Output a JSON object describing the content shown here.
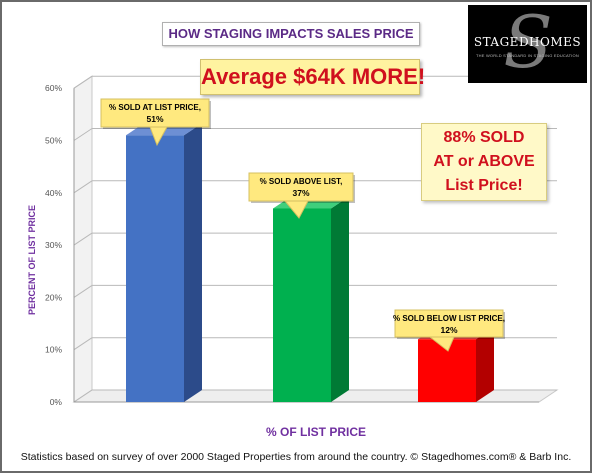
{
  "chart_data": {
    "type": "bar",
    "title": "HOW STAGING IMPACTS SALES PRICE",
    "xlabel": "% OF LIST PRICE",
    "ylabel": "PERCENT OF LIST PRICE",
    "ylim": [
      0,
      60
    ],
    "yticks": [
      "0%",
      "10%",
      "20%",
      "30%",
      "40%",
      "50%",
      "60%"
    ],
    "grid": true,
    "categories": [
      "% SOLD AT LIST PRICE,",
      "% SOLD ABOVE LIST,",
      "% SOLD BELOW LIST PRICE,"
    ],
    "values": [
      51,
      37,
      12
    ],
    "value_labels": [
      "51%",
      "37%",
      "12%"
    ],
    "bar_colors": [
      {
        "front": "#4472c4",
        "side": "#2c4b8a",
        "top": "#6d8fd4"
      },
      {
        "front": "#00b04f",
        "side": "#007a35",
        "top": "#3fcf7c"
      },
      {
        "front": "#ff0000",
        "side": "#b30000",
        "top": "#ff5050"
      }
    ],
    "annotations": {
      "banner": "Average $64K MORE!",
      "callout": [
        "88% SOLD",
        "AT or ABOVE",
        "List Price!"
      ]
    }
  },
  "logo": {
    "name": "STAGEDHOMES",
    "tagline": "THE WORLD STANDARD IN STAGING EDUCATION"
  },
  "footer": "Statistics based on survey of over 2000 Staged Properties from around the country.  © Stagedhomes.com® & Barb Inc.",
  "colors": {
    "title": "#5b2a86",
    "accent_red": "#d0101e",
    "callout_bg": "#fff3a0"
  }
}
